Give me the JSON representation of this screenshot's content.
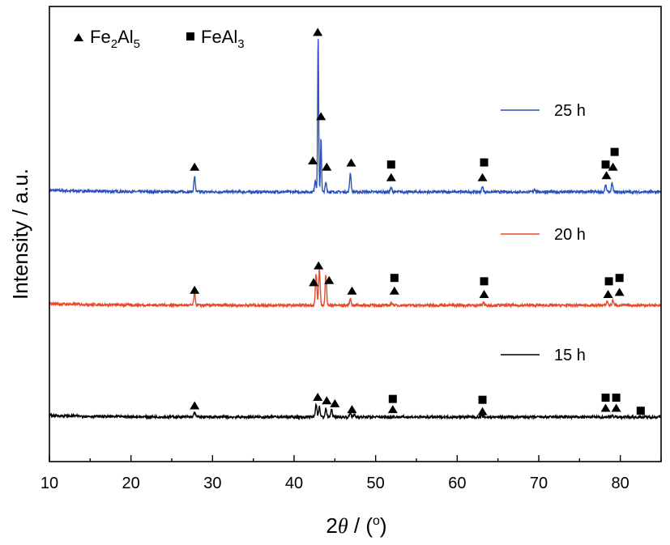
{
  "chart_data": {
    "type": "line",
    "xlabel_prefix": "2",
    "xlabel_symbol": "θ",
    "xlabel_suffix": " / (",
    "xlabel_unit": "o",
    "xlabel_close": ")",
    "ylabel": "Intensity / a.u.",
    "xlim": [
      10,
      85
    ],
    "x_ticks": [
      10,
      20,
      30,
      40,
      50,
      60,
      70,
      80
    ],
    "y_ticks_labeled": false,
    "legend_placement": "right, beside each curve",
    "marker_legend": [
      {
        "symbol": "triangle",
        "base": "Fe",
        "sub1": "2",
        "mid": "Al",
        "sub2": "5"
      },
      {
        "symbol": "square",
        "base": "FeAl",
        "sub1": "3",
        "mid": "",
        "sub2": ""
      }
    ],
    "series": [
      {
        "name": "25 h",
        "color": "#2a52be",
        "baseline": 2,
        "peaks": [
          {
            "x": 27.8,
            "h": 0.35
          },
          {
            "x": 42.6,
            "h": 0.28
          },
          {
            "x": 42.95,
            "h": 3.7
          },
          {
            "x": 43.3,
            "h": 1.3
          },
          {
            "x": 43.9,
            "h": 0.22
          },
          {
            "x": 46.9,
            "h": 0.45
          },
          {
            "x": 51.9,
            "h": 0.1
          },
          {
            "x": 63.1,
            "h": 0.12
          },
          {
            "x": 69.5,
            "h": 0.07
          },
          {
            "x": 78.2,
            "h": 0.16
          },
          {
            "x": 79.0,
            "h": 0.2
          }
        ],
        "markers": [
          {
            "x": 27.8,
            "y": 2.6,
            "s": "triangle"
          },
          {
            "x": 42.3,
            "y": 2.75,
            "s": "triangle"
          },
          {
            "x": 43.3,
            "y": 3.8,
            "s": "triangle"
          },
          {
            "x": 42.9,
            "y": 5.8,
            "s": "triangle"
          },
          {
            "x": 44.0,
            "y": 2.6,
            "s": "triangle"
          },
          {
            "x": 47.0,
            "y": 2.7,
            "s": "triangle"
          },
          {
            "x": 51.9,
            "y": 2.35,
            "s": "triangle"
          },
          {
            "x": 51.9,
            "y": 2.65,
            "s": "square"
          },
          {
            "x": 63.1,
            "y": 2.35,
            "s": "triangle"
          },
          {
            "x": 63.3,
            "y": 2.7,
            "s": "square"
          },
          {
            "x": 78.3,
            "y": 2.4,
            "s": "triangle"
          },
          {
            "x": 79.1,
            "y": 2.6,
            "s": "triangle"
          },
          {
            "x": 78.2,
            "y": 2.65,
            "s": "square"
          },
          {
            "x": 79.3,
            "y": 2.95,
            "s": "square"
          }
        ]
      },
      {
        "name": "20 h",
        "color": "#e8492a",
        "baseline": 1,
        "peaks": [
          {
            "x": 27.8,
            "h": 0.28
          },
          {
            "x": 42.7,
            "h": 0.75
          },
          {
            "x": 43.1,
            "h": 0.85
          },
          {
            "x": 43.9,
            "h": 0.72
          },
          {
            "x": 46.9,
            "h": 0.15
          },
          {
            "x": 52.0,
            "h": 0.06
          },
          {
            "x": 63.2,
            "h": 0.07
          },
          {
            "x": 78.4,
            "h": 0.1
          },
          {
            "x": 79.1,
            "h": 0.12
          }
        ],
        "markers": [
          {
            "x": 27.8,
            "y": 1.37,
            "s": "triangle"
          },
          {
            "x": 42.4,
            "y": 1.55,
            "s": "triangle"
          },
          {
            "x": 43.0,
            "y": 1.95,
            "s": "triangle"
          },
          {
            "x": 44.3,
            "y": 1.6,
            "s": "triangle"
          },
          {
            "x": 47.1,
            "y": 1.35,
            "s": "triangle"
          },
          {
            "x": 52.3,
            "y": 1.35,
            "s": "triangle"
          },
          {
            "x": 52.3,
            "y": 1.65,
            "s": "square"
          },
          {
            "x": 63.3,
            "y": 1.27,
            "s": "triangle"
          },
          {
            "x": 63.3,
            "y": 1.57,
            "s": "square"
          },
          {
            "x": 78.5,
            "y": 1.27,
            "s": "triangle"
          },
          {
            "x": 79.9,
            "y": 1.32,
            "s": "triangle"
          },
          {
            "x": 78.6,
            "y": 1.57,
            "s": "square"
          },
          {
            "x": 79.9,
            "y": 1.65,
            "s": "square"
          }
        ]
      },
      {
        "name": "15 h",
        "color": "#000000",
        "baseline": 0,
        "peaks": [
          {
            "x": 27.8,
            "h": 0.12
          },
          {
            "x": 42.7,
            "h": 0.32
          },
          {
            "x": 43.1,
            "h": 0.25
          },
          {
            "x": 43.9,
            "h": 0.2
          },
          {
            "x": 44.6,
            "h": 0.18
          },
          {
            "x": 46.9,
            "h": 0.1
          },
          {
            "x": 47.4,
            "h": 0.05
          },
          {
            "x": 63.0,
            "h": 0.05
          },
          {
            "x": 79.0,
            "h": 0.05
          }
        ],
        "markers": [
          {
            "x": 27.8,
            "y": 0.28,
            "s": "triangle"
          },
          {
            "x": 42.9,
            "y": 0.48,
            "s": "triangle"
          },
          {
            "x": 44.0,
            "y": 0.4,
            "s": "triangle"
          },
          {
            "x": 45.0,
            "y": 0.33,
            "s": "triangle"
          },
          {
            "x": 47.1,
            "y": 0.19,
            "s": "triangle"
          },
          {
            "x": 52.1,
            "y": 0.19,
            "s": "triangle"
          },
          {
            "x": 52.1,
            "y": 0.43,
            "s": "square"
          },
          {
            "x": 63.1,
            "y": 0.14,
            "s": "triangle"
          },
          {
            "x": 63.1,
            "y": 0.41,
            "s": "square"
          },
          {
            "x": 78.2,
            "y": 0.22,
            "s": "triangle"
          },
          {
            "x": 79.5,
            "y": 0.22,
            "s": "triangle"
          },
          {
            "x": 78.2,
            "y": 0.46,
            "s": "square"
          },
          {
            "x": 79.5,
            "y": 0.46,
            "s": "square"
          },
          {
            "x": 82.5,
            "y": 0.15,
            "s": "square"
          }
        ]
      }
    ]
  }
}
